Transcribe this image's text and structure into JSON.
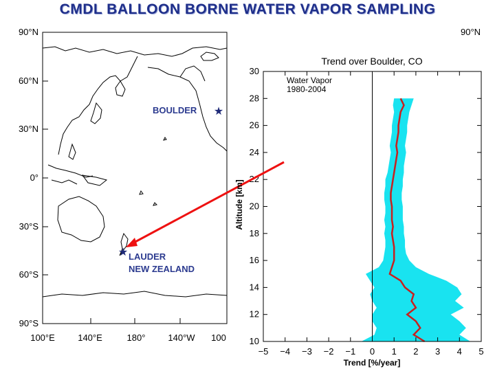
{
  "title": "CMDL BALLOON BORNE WATER VAPOR SAMPLING",
  "map": {
    "lat_labels": [
      "90°N",
      "60°N",
      "30°N",
      "0°",
      "30°S",
      "60°S",
      "90°S"
    ],
    "lon_labels": [
      "100°E",
      "140°E",
      "180°",
      "140°W",
      "100"
    ],
    "right_lat_label": "90°N",
    "sites": [
      {
        "name_lines": [
          "BOULDER"
        ],
        "lat": 40.0,
        "lon": -105.3
      },
      {
        "name_lines": [
          "LAUDER",
          "NEW ZEALAND"
        ],
        "lat": -45.0,
        "lon": 169.7
      }
    ],
    "marker_color": "#1f2a78",
    "arrow_color": "#ee1111"
  },
  "chart_data": {
    "type": "area",
    "title": "Trend over Boulder, CO",
    "inset_label": [
      "Water Vapor",
      "1980-2004"
    ],
    "xlabel": "Trend [%/year]",
    "ylabel": "Altitude [km]",
    "xlim": [
      -5,
      5
    ],
    "ylim": [
      10,
      30
    ],
    "xticks": [
      -5,
      -4,
      -3,
      -2,
      -1,
      0,
      1,
      2,
      3,
      4,
      5
    ],
    "yticks": [
      10,
      12,
      14,
      16,
      18,
      20,
      22,
      24,
      26,
      28,
      30
    ],
    "band_color": "#19e3f0",
    "line_color": "#c8201e",
    "series": [
      {
        "altitude": [
          10,
          10.5,
          11,
          11.5,
          12,
          12.5,
          13,
          13.5,
          14,
          14.5,
          15,
          15.5,
          16,
          16.5,
          17,
          17.5,
          18,
          18.5,
          19,
          19.5,
          20,
          20.5,
          21,
          21.5,
          22,
          22.5,
          23,
          23.5,
          24,
          24.5,
          25,
          25.5,
          26,
          26.5,
          27,
          27.5,
          28
        ],
        "trend": [
          2.4,
          1.9,
          2.2,
          2.0,
          1.6,
          2.0,
          1.8,
          1.9,
          1.5,
          1.3,
          0.8,
          0.9,
          1.0,
          1.0,
          1.0,
          0.95,
          0.9,
          0.95,
          0.9,
          0.9,
          0.9,
          0.85,
          0.85,
          0.9,
          0.95,
          1.0,
          1.05,
          1.1,
          1.15,
          1.1,
          1.15,
          1.2,
          1.2,
          1.25,
          1.3,
          1.45,
          1.3
        ],
        "lower": [
          -0.5,
          0.1,
          0.2,
          0.0,
          0.0,
          0.2,
          0.0,
          -0.1,
          0.1,
          -0.1,
          -0.3,
          0.3,
          0.5,
          0.55,
          0.6,
          0.6,
          0.55,
          0.6,
          0.55,
          0.6,
          0.6,
          0.55,
          0.55,
          0.6,
          0.6,
          0.7,
          0.75,
          0.8,
          0.85,
          0.8,
          0.85,
          0.9,
          0.9,
          0.95,
          1.0,
          0.95,
          1.0
        ],
        "upper": [
          4.5,
          4.0,
          4.3,
          4.0,
          3.6,
          4.2,
          3.8,
          4.1,
          3.9,
          3.4,
          2.6,
          2.0,
          1.7,
          1.55,
          1.5,
          1.5,
          1.45,
          1.45,
          1.4,
          1.4,
          1.4,
          1.35,
          1.35,
          1.4,
          1.4,
          1.45,
          1.45,
          1.5,
          1.55,
          1.5,
          1.55,
          1.6,
          1.6,
          1.65,
          1.7,
          1.8,
          1.9
        ]
      }
    ]
  }
}
